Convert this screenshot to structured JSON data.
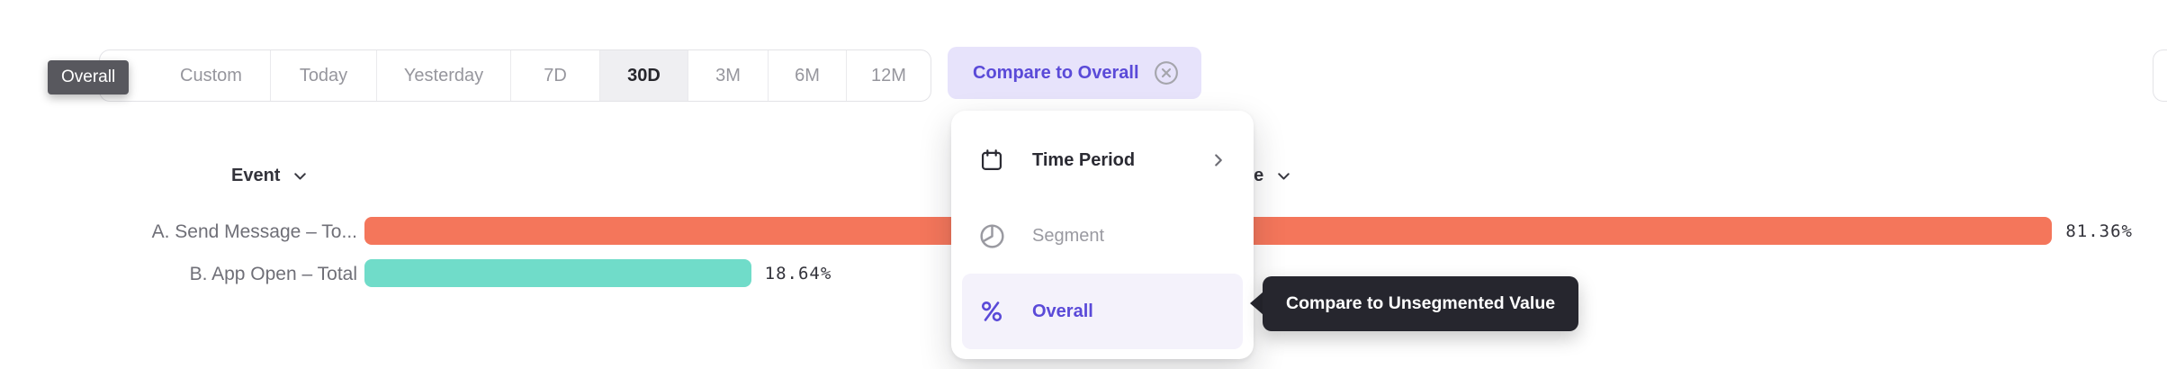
{
  "toolbar": {
    "drag_label": "Overall",
    "time_range": {
      "buttons": [
        {
          "label": "Custom",
          "selected": false
        },
        {
          "label": "Today",
          "selected": false
        },
        {
          "label": "Yesterday",
          "selected": false
        },
        {
          "label": "7D",
          "selected": false
        },
        {
          "label": "30D",
          "selected": true
        },
        {
          "label": "3M",
          "selected": false
        },
        {
          "label": "6M",
          "selected": false
        },
        {
          "label": "12M",
          "selected": false
        }
      ]
    },
    "compare_chip": {
      "label": "Compare to Overall",
      "close_icon": "circle-x-icon"
    }
  },
  "chart_data": {
    "type": "bar",
    "orientation": "horizontal",
    "column_headers": [
      {
        "label": "Event",
        "sort_icon": "chevron-down-icon"
      },
      {
        "label": "Value",
        "sort_icon": "chevron-down-icon"
      }
    ],
    "categories": [
      "A. Send Message – To...",
      "B. App Open – Total"
    ],
    "values": [
      81.36,
      18.64
    ],
    "value_labels": [
      "81.36%",
      "18.64%"
    ],
    "bar_colors": [
      "#F4765B",
      "#70DCC9"
    ],
    "xlim": [
      0,
      100
    ],
    "grid": false,
    "legend": false
  },
  "dropdown_menu": {
    "items": [
      {
        "label": "Time Period",
        "icon": "calendar-icon",
        "has_submenu": true,
        "state": "default"
      },
      {
        "label": "Segment",
        "icon": "segment-icon",
        "has_submenu": false,
        "state": "muted"
      },
      {
        "label": "Overall",
        "icon": "percent-icon",
        "has_submenu": false,
        "state": "selected"
      }
    ]
  },
  "tooltip": {
    "text": "Compare to Unsegmented Value"
  },
  "colors": {
    "accent_purple": "#5A4AD8",
    "accent_purple_bg": "#E7E3FB",
    "bar_orange": "#F4765B",
    "bar_teal": "#70DCC9",
    "tooltip_dark_bg": "#26262E",
    "drag_label_bg": "#58585E",
    "selected_menu_item_bg": "#F4F2FB",
    "selected_time_button_bg": "#EFEFF2"
  }
}
